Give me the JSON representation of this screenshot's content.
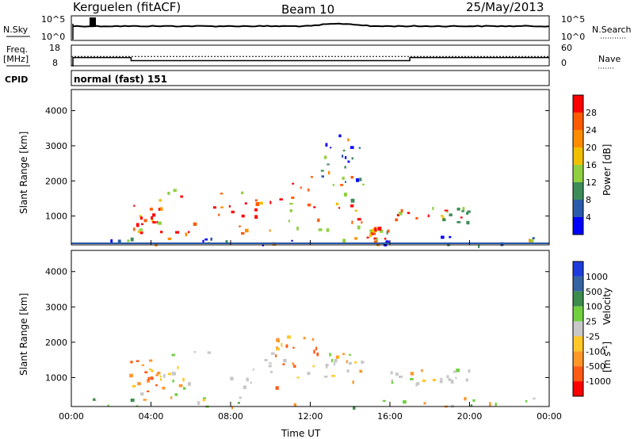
{
  "chart_data": {
    "type": "heatmap",
    "station": "Kerguelen (fitACF)",
    "beam": "Beam 10",
    "date": "25/May/2013",
    "xlabel": "Time UT",
    "x_ticks": [
      "00:00",
      "04:00",
      "08:00",
      "12:00",
      "16:00",
      "20:00",
      "00:00"
    ],
    "xlim_hours": [
      0,
      24
    ],
    "noise_panel": {
      "left_label": "N.Sky",
      "right_label": "N.Search",
      "left_ticks": [
        "10^5",
        "10^0"
      ],
      "right_ticks": [
        "10^5",
        "10^0"
      ]
    },
    "freq_panel": {
      "left_label_1": "Freq.",
      "left_label_2": "[MHz]",
      "right_label": "Nave",
      "left_ticks": [
        "18",
        "8"
      ],
      "right_ticks": [
        "60",
        "0"
      ],
      "ylim": [
        8,
        18
      ],
      "nave_ylim": [
        0,
        60
      ],
      "freq_steps": [
        {
          "t0": 0.0,
          "t1": 0.08,
          "mhz": 8
        },
        {
          "t0": 0.08,
          "t1": 3.0,
          "mhz": 12
        },
        {
          "t0": 3.0,
          "t1": 17.0,
          "mhz": 10.5
        },
        {
          "t0": 17.0,
          "t1": 24.0,
          "mhz": 12
        }
      ],
      "nave_level": 27
    },
    "cpid_label": "CPID",
    "cpid_value": "normal (fast) 151",
    "ylabel": "Slant Range [km]",
    "y_ticks": [
      "1000",
      "2000",
      "3000",
      "4000"
    ],
    "ylim_km": [
      180,
      4600
    ],
    "power_colorbar": {
      "label": "Power [dB]",
      "ticks": [
        "4",
        "8",
        "12",
        "16",
        "20",
        "24",
        "28"
      ],
      "colors": [
        "#0000ff",
        "#2a5aaa",
        "#3c8c5a",
        "#90d040",
        "#f0c000",
        "#ff8c00",
        "#ff5a00",
        "#ff0000"
      ]
    },
    "velocity_colorbar": {
      "label": "Velocity",
      "unit": "[m s",
      "unit_sup": "-1",
      "unit_end": "]",
      "ticks": [
        "1000",
        "500",
        "100",
        "25",
        "-25",
        "-100",
        "-500",
        "-1000"
      ],
      "colors": [
        "#1e3cdc",
        "#3464a0",
        "#3c8c4c",
        "#70d040",
        "#c8c8c8",
        "#ffc828",
        "#ff9628",
        "#ff5a14",
        "#ff0000"
      ]
    },
    "echo_regions_power": [
      {
        "t0": 2.9,
        "t1": 4.5,
        "r0": 550,
        "r1": 1550,
        "level": "strong"
      },
      {
        "t0": 4.5,
        "t1": 10.5,
        "r0": 350,
        "r1": 1800,
        "level": "strong"
      },
      {
        "t0": 10.5,
        "t1": 14.8,
        "r0": 600,
        "r1": 2200,
        "level": "medium"
      },
      {
        "t0": 14.8,
        "t1": 16.0,
        "r0": 250,
        "r1": 700,
        "level": "medium"
      },
      {
        "t0": 16.0,
        "t1": 20.0,
        "r0": 800,
        "r1": 1300,
        "level": "medium"
      },
      {
        "t0": 12.5,
        "t1": 14.8,
        "r0": 1800,
        "r1": 3400,
        "level": "weak"
      },
      {
        "t0": 0.0,
        "t1": 24.0,
        "r0": 190,
        "r1": 450,
        "level": "weak"
      }
    ],
    "echo_regions_velocity": [
      {
        "t0": 2.9,
        "t1": 4.6,
        "r0": 550,
        "r1": 1550,
        "kind": "receding"
      },
      {
        "t0": 4.6,
        "t1": 10.2,
        "r0": 350,
        "r1": 1800,
        "kind": "slow"
      },
      {
        "t0": 10.2,
        "t1": 12.5,
        "r0": 700,
        "r1": 2200,
        "kind": "receding"
      },
      {
        "t0": 12.5,
        "t1": 14.8,
        "r0": 900,
        "r1": 1700,
        "kind": "slow"
      },
      {
        "t0": 16.0,
        "t1": 20.0,
        "r0": 800,
        "r1": 1300,
        "kind": "slow"
      },
      {
        "t0": 0.0,
        "t1": 24.0,
        "r0": 190,
        "r1": 450,
        "kind": "mixed"
      }
    ]
  }
}
